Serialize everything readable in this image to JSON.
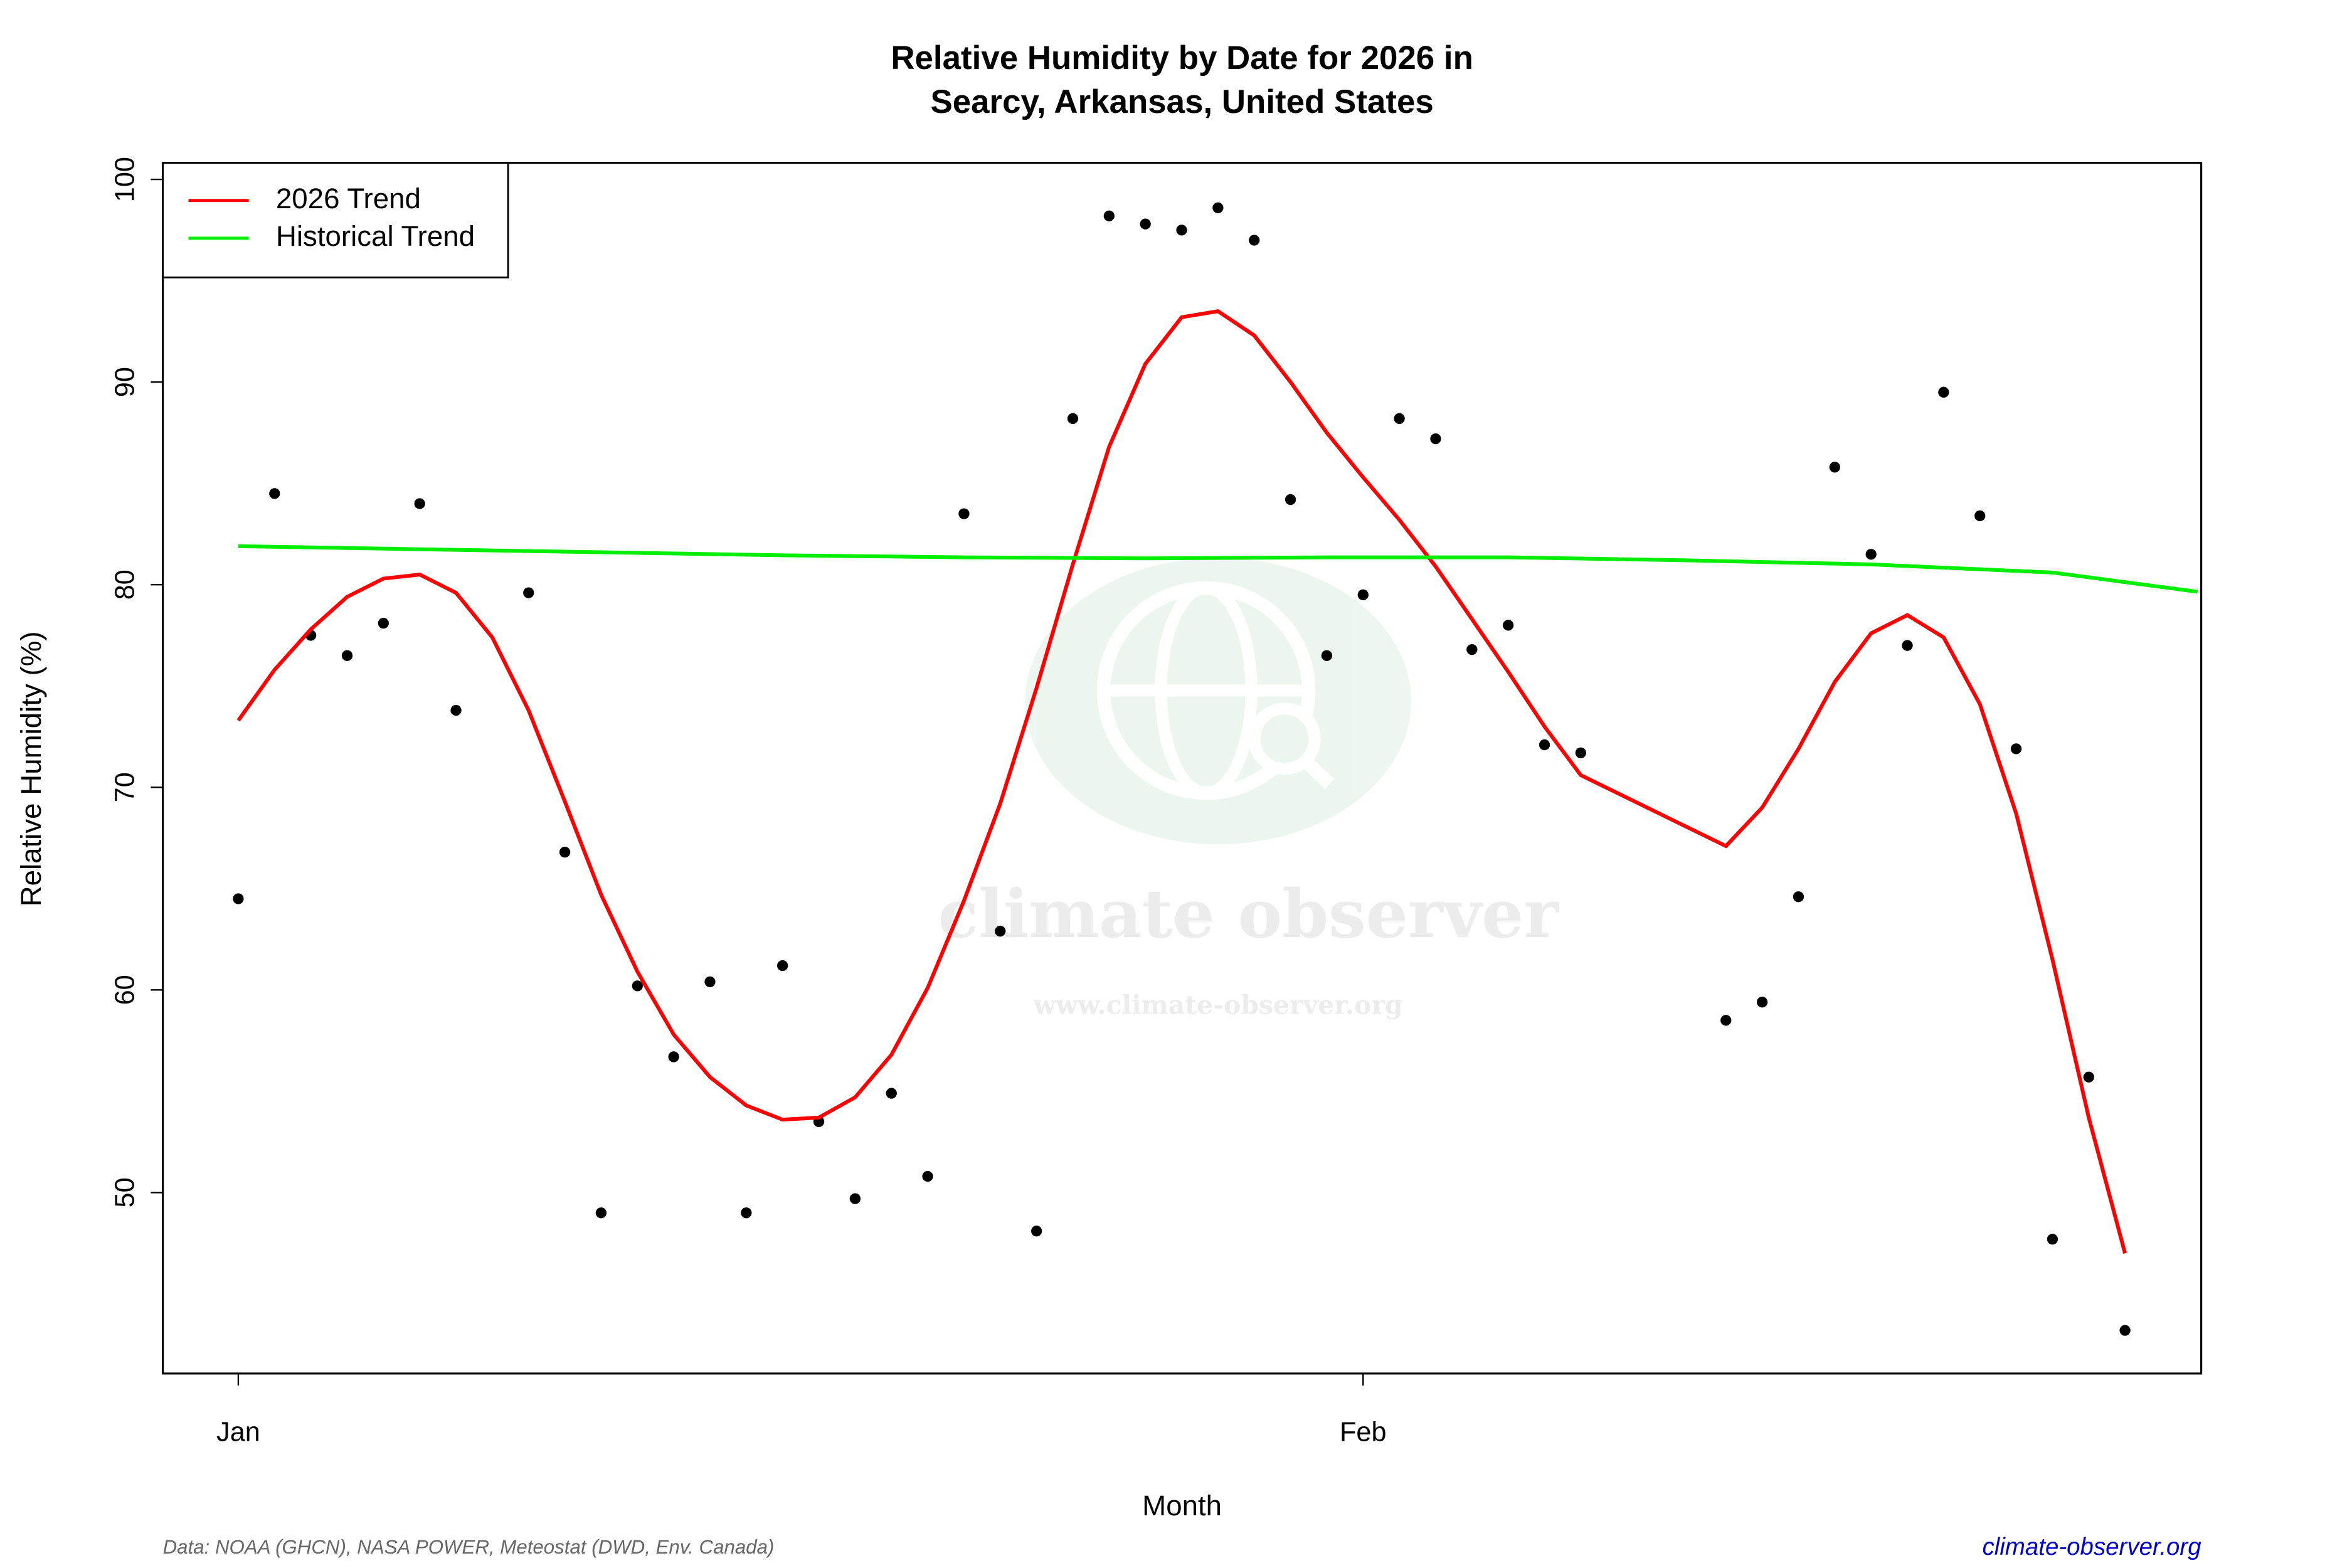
{
  "chart_data": {
    "type": "scatter",
    "title": [
      "Relative Humidity by Date for 2026 in",
      "Searcy, Arkansas, United States"
    ],
    "x_label": "Month",
    "y_label": "Relative Humidity (%)",
    "xlim": [
      -1.08,
      55.1
    ],
    "ylim": [
      41.07,
      100.82
    ],
    "xticks": [
      {
        "value": 1,
        "label": "Jan"
      },
      {
        "value": 32,
        "label": "Feb"
      }
    ],
    "yticks": [
      50,
      60,
      70,
      80,
      90,
      100
    ],
    "legend": "top-left",
    "series": [
      {
        "type": "scatter",
        "color": "#000000",
        "x": [
          1,
          2,
          3,
          4,
          5,
          6,
          7,
          9,
          10,
          11,
          12,
          13,
          14,
          15,
          16,
          17,
          18,
          19,
          20,
          21,
          22,
          23,
          24,
          25,
          26,
          27,
          28,
          29,
          30,
          31,
          32,
          33,
          34,
          35,
          36,
          37,
          38,
          42,
          43,
          44,
          45,
          46,
          47,
          48,
          49,
          50,
          51,
          52,
          53
        ],
        "values": [
          64.5,
          84.5,
          77.5,
          76.5,
          78.1,
          84.0,
          73.8,
          79.6,
          66.8,
          49.0,
          60.2,
          56.7,
          60.4,
          49.0,
          61.2,
          53.5,
          49.7,
          54.9,
          50.8,
          83.5,
          62.9,
          48.1,
          88.2,
          98.2,
          97.8,
          97.5,
          98.6,
          97.0,
          84.2,
          76.5,
          79.5,
          88.2,
          87.2,
          76.8,
          78.0,
          72.1,
          71.7,
          58.5,
          59.4,
          64.6,
          85.8,
          81.5,
          77.0,
          89.5,
          83.4,
          71.9,
          47.7,
          55.7,
          43.2
        ]
      },
      {
        "type": "line",
        "name": "2026 Trend",
        "color": "#ff0000",
        "x": [
          1,
          2,
          3,
          4,
          5,
          6,
          7,
          8,
          9,
          10,
          11,
          12,
          13,
          14,
          15,
          16,
          17,
          18,
          19,
          20,
          21,
          22,
          23,
          24,
          25,
          26,
          27,
          28,
          29,
          30,
          31,
          32,
          33,
          34,
          35,
          36,
          37,
          38,
          42,
          43,
          44,
          45,
          46,
          47,
          48,
          49,
          50,
          51,
          52,
          53
        ],
        "values": [
          73.3,
          75.8,
          77.8,
          79.4,
          80.3,
          80.5,
          79.6,
          77.4,
          73.8,
          69.3,
          64.7,
          60.9,
          57.8,
          55.7,
          54.3,
          53.6,
          53.7,
          54.7,
          56.8,
          60.1,
          64.4,
          69.2,
          74.9,
          81.0,
          86.8,
          90.9,
          93.2,
          93.5,
          92.3,
          90.0,
          87.5,
          85.3,
          83.2,
          80.9,
          78.3,
          75.7,
          73.0,
          70.6,
          67.1,
          69.0,
          71.9,
          75.2,
          77.6,
          78.5,
          77.4,
          74.1,
          68.7,
          61.5,
          53.7,
          47.0
        ]
      },
      {
        "type": "line",
        "name": "Historical Trend",
        "color": "#00ee00",
        "x": [
          1,
          6,
          11,
          16,
          21,
          26,
          31,
          36,
          41,
          46,
          51,
          55
        ],
        "values": [
          81.9,
          81.75,
          81.6,
          81.45,
          81.35,
          81.3,
          81.35,
          81.35,
          81.2,
          81.0,
          80.6,
          79.65
        ]
      }
    ],
    "watermark": [
      "climate observer",
      "www.climate-observer.org"
    ],
    "source": "Data: NOAA (GHCN), NASA POWER, Meteostat (DWD, Env. Canada)",
    "site": "climate-observer.org"
  }
}
